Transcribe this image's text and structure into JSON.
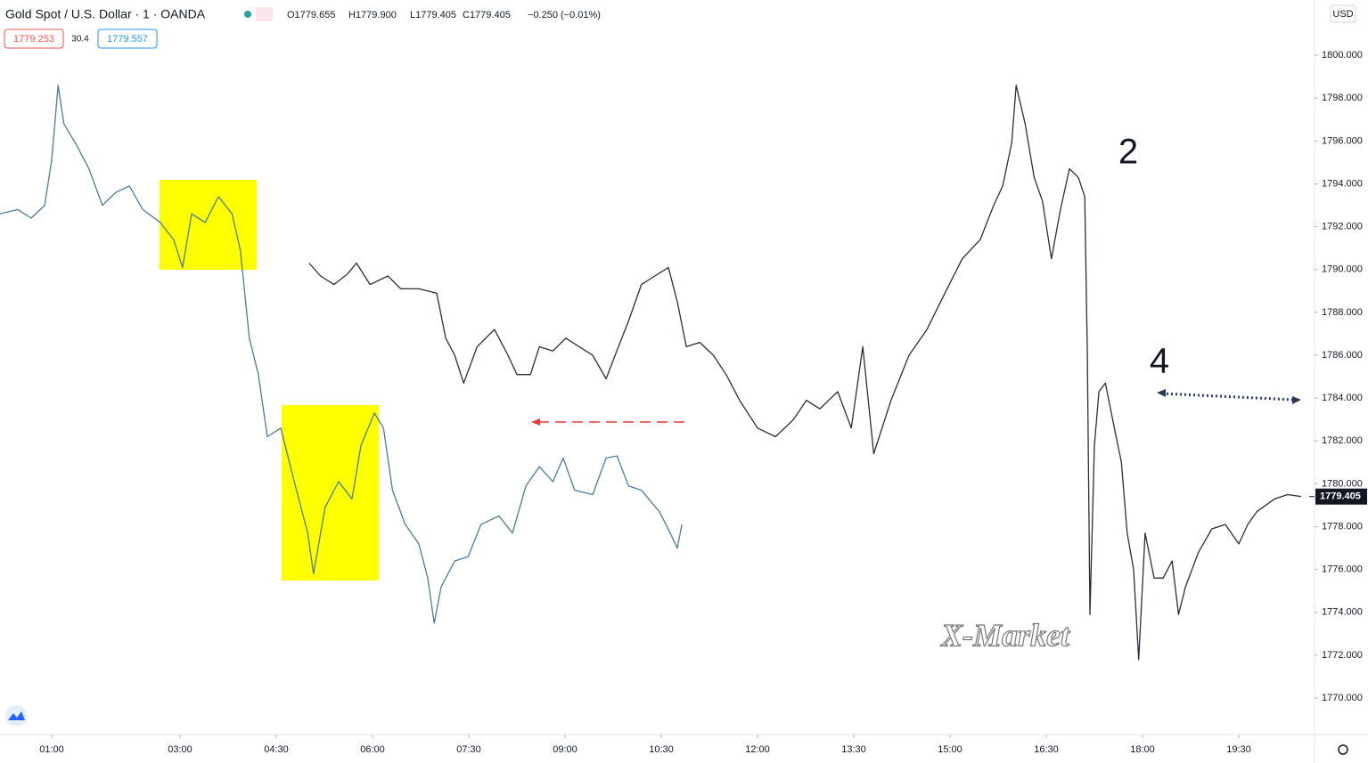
{
  "header": {
    "symbol": "Gold Spot / U.S. Dollar · 1 · OANDA",
    "open": "O1779.655",
    "high": "H1779.900",
    "low": "L1779.405",
    "close": "C1779.405",
    "change": "−0.250 (−0.01%)",
    "sell_price": "1779.253",
    "spread": "30.4",
    "buy_price": "1779.557"
  },
  "chart_data": {
    "type": "line",
    "currency": "USD",
    "last_price_label": "1779.405",
    "annotations": [
      "2",
      "4"
    ],
    "watermark": "X-Market",
    "xlim": [
      0.194,
      20.68
    ],
    "ylim": [
      1768.3,
      1802.58
    ],
    "xticks": [
      {
        "value": 1,
        "label": "01:00"
      },
      {
        "value": 3,
        "label": "03:00"
      },
      {
        "value": 4.5,
        "label": "04:30"
      },
      {
        "value": 6,
        "label": "06:00"
      },
      {
        "value": 7.5,
        "label": "07:30"
      },
      {
        "value": 9,
        "label": "09:00"
      },
      {
        "value": 10.5,
        "label": "10:30"
      },
      {
        "value": 12,
        "label": "12:00"
      },
      {
        "value": 13.5,
        "label": "13:30"
      },
      {
        "value": 15,
        "label": "15:00"
      },
      {
        "value": 16.5,
        "label": "16:30"
      },
      {
        "value": 18,
        "label": "18:00"
      },
      {
        "value": 19.5,
        "label": "19:30"
      }
    ],
    "yticks": [
      {
        "value": 1770,
        "label": "1770.000"
      },
      {
        "value": 1772,
        "label": "1772.000"
      },
      {
        "value": 1774,
        "label": "1774.000"
      },
      {
        "value": 1776,
        "label": "1776.000"
      },
      {
        "value": 1778,
        "label": "1778.000"
      },
      {
        "value": 1780,
        "label": "1780.000"
      },
      {
        "value": 1782,
        "label": "1782.000"
      },
      {
        "value": 1784,
        "label": "1784.000"
      },
      {
        "value": 1786,
        "label": "1786.000"
      },
      {
        "value": 1788,
        "label": "1788.000"
      },
      {
        "value": 1790,
        "label": "1790.000"
      },
      {
        "value": 1792,
        "label": "1792.000"
      },
      {
        "value": 1794,
        "label": "1794.000"
      },
      {
        "value": 1796,
        "label": "1796.000"
      },
      {
        "value": 1798,
        "label": "1798.000"
      },
      {
        "value": 1800,
        "label": "1800.000"
      }
    ],
    "series": [
      {
        "color": "#4e7a99",
        "x": [
          0.19,
          0.47,
          0.68,
          0.89,
          1.0,
          1.1,
          1.19,
          1.37,
          1.58,
          1.79,
          2.0,
          2.21,
          2.42,
          2.69,
          2.9,
          3.04,
          3.18,
          3.39,
          3.6,
          3.81,
          3.94,
          4.08,
          4.22,
          4.36,
          4.57,
          4.78,
          4.99,
          5.08,
          5.26,
          5.47,
          5.68,
          5.82,
          6.03,
          6.17,
          6.31,
          6.51,
          6.72,
          6.86,
          6.96,
          7.07,
          7.28,
          7.49,
          7.69,
          7.97,
          8.18,
          8.39,
          8.6,
          8.81,
          8.97,
          9.15,
          9.43,
          9.64,
          9.81,
          9.99,
          10.19,
          10.47,
          10.64,
          10.75,
          10.82
        ],
        "values": [
          1792.6,
          1792.8,
          1792.4,
          1793.0,
          1795.1,
          1798.6,
          1796.8,
          1795.9,
          1794.7,
          1793.0,
          1793.6,
          1793.9,
          1792.8,
          1792.2,
          1791.4,
          1790.1,
          1792.6,
          1792.2,
          1793.4,
          1792.6,
          1790.9,
          1786.8,
          1785.1,
          1782.2,
          1782.6,
          1780.1,
          1777.7,
          1775.8,
          1778.9,
          1780.1,
          1779.3,
          1781.8,
          1783.3,
          1782.6,
          1779.7,
          1778.1,
          1777.2,
          1775.6,
          1773.5,
          1775.2,
          1776.4,
          1776.6,
          1778.1,
          1778.5,
          1777.7,
          1779.9,
          1780.8,
          1780.1,
          1781.2,
          1779.7,
          1779.5,
          1781.2,
          1781.3,
          1779.9,
          1779.7,
          1778.7,
          1777.7,
          1777.0,
          1778.1
        ]
      },
      {
        "color": "#2a2e39",
        "x": [
          5.01,
          5.19,
          5.4,
          5.61,
          5.75,
          5.96,
          6.24,
          6.44,
          6.72,
          7.0,
          7.14,
          7.28,
          7.42,
          7.63,
          7.9,
          8.11,
          8.25,
          8.46,
          8.6,
          8.81,
          9.01,
          9.22,
          9.43,
          9.64,
          9.78,
          9.99,
          10.19,
          10.4,
          10.61,
          10.75,
          10.89,
          11.1,
          11.31,
          11.51,
          11.72,
          12.0,
          12.28,
          12.56,
          12.76,
          12.97,
          13.25,
          13.46,
          13.64,
          13.81,
          14.08,
          14.36,
          14.64,
          14.92,
          15.19,
          15.47,
          15.68,
          15.82,
          15.96,
          16.03,
          16.17,
          16.31,
          16.44,
          16.58,
          16.72,
          16.86,
          17.0,
          17.1,
          17.14,
          17.18,
          17.25,
          17.32,
          17.42,
          17.56,
          17.67,
          17.76,
          17.86,
          17.94,
          18.04,
          18.18,
          18.32,
          18.46,
          18.56,
          18.67,
          18.87,
          19.08,
          19.29,
          19.5,
          19.64,
          19.78,
          20.06,
          20.26,
          20.47
        ],
        "values": [
          1790.3,
          1789.7,
          1789.3,
          1789.8,
          1790.3,
          1789.3,
          1789.7,
          1789.1,
          1789.1,
          1788.9,
          1786.8,
          1786.0,
          1784.7,
          1786.4,
          1787.2,
          1786.0,
          1785.1,
          1785.1,
          1786.4,
          1786.2,
          1786.8,
          1786.4,
          1786.0,
          1784.9,
          1786.0,
          1787.6,
          1789.3,
          1789.7,
          1790.1,
          1788.5,
          1786.4,
          1786.6,
          1786.0,
          1785.1,
          1783.9,
          1782.6,
          1782.2,
          1783.0,
          1783.9,
          1783.5,
          1784.3,
          1782.6,
          1786.4,
          1781.4,
          1783.9,
          1786.0,
          1787.2,
          1788.9,
          1790.5,
          1791.4,
          1793.0,
          1793.9,
          1795.9,
          1798.6,
          1796.8,
          1794.3,
          1793.2,
          1790.5,
          1792.8,
          1794.7,
          1794.3,
          1793.4,
          1786.0,
          1773.9,
          1781.8,
          1784.3,
          1784.7,
          1782.6,
          1781.0,
          1777.7,
          1776.0,
          1771.8,
          1777.7,
          1775.6,
          1775.6,
          1776.4,
          1773.9,
          1775.2,
          1776.8,
          1777.9,
          1778.1,
          1777.2,
          1778.1,
          1778.7,
          1779.3,
          1779.5,
          1779.405
        ]
      }
    ]
  }
}
